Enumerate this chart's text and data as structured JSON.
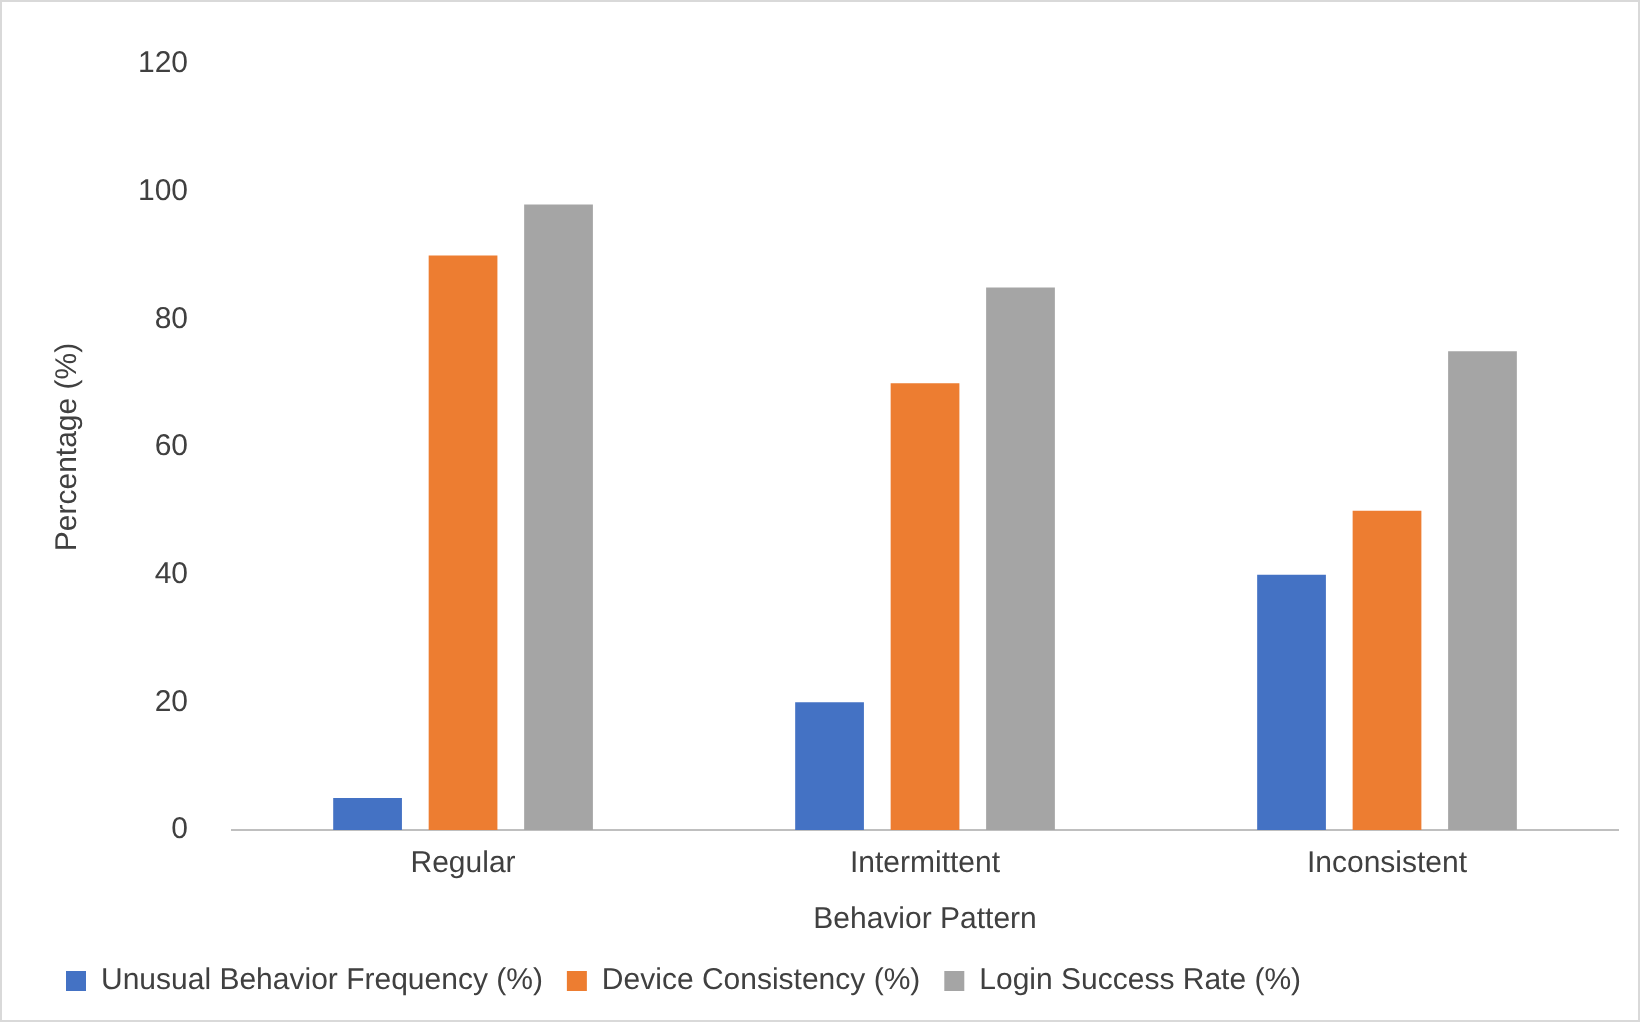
{
  "chart_data": {
    "type": "bar",
    "xlabel": "Behavior Pattern",
    "ylabel": "Percentage (%)",
    "categories": [
      "Regular",
      "Intermittent",
      "Inconsistent"
    ],
    "series": [
      {
        "name": "Unusual Behavior Frequency (%)",
        "color": "#4472c4",
        "values": [
          5,
          20,
          40
        ]
      },
      {
        "name": "Device Consistency (%)",
        "color": "#ed7d31",
        "values": [
          90,
          70,
          50
        ]
      },
      {
        "name": "Login Success Rate (%)",
        "color": "#a5a5a5",
        "values": [
          98,
          85,
          75
        ]
      }
    ],
    "ylim": [
      0,
      120
    ],
    "yticks": [
      0,
      20,
      40,
      60,
      80,
      100,
      120
    ],
    "grid": false,
    "legend": "bottom"
  }
}
